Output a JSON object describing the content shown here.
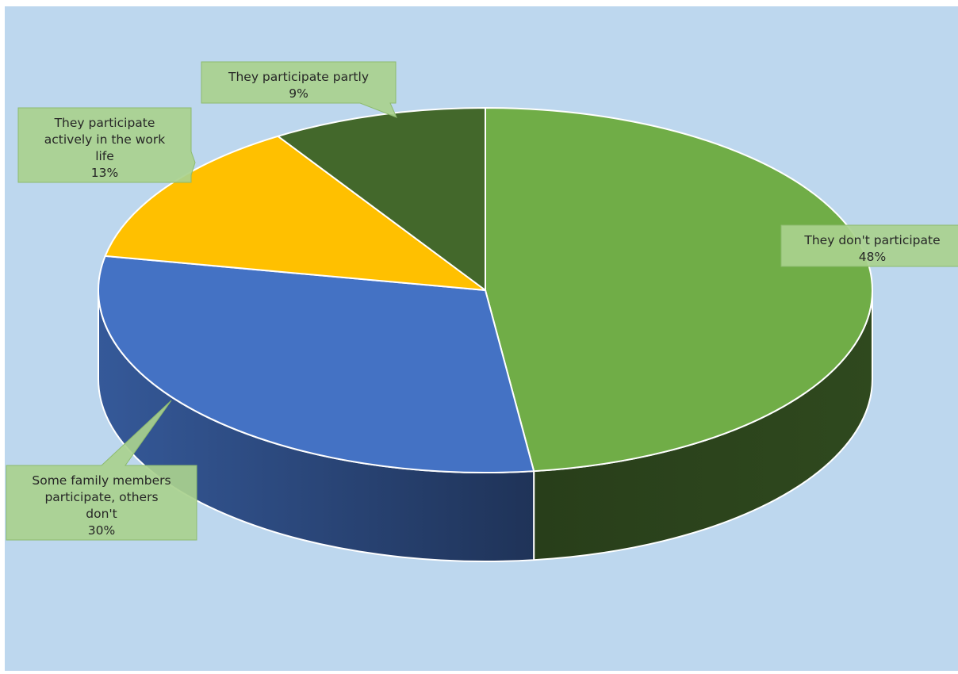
{
  "chart_data": {
    "type": "pie",
    "style": "3d",
    "categories": [
      "They don't participate",
      "Some family members participate, others don't",
      "They participate actively in the work life",
      "They participate partly"
    ],
    "values": [
      48,
      30,
      13,
      9
    ],
    "data_labels": [
      {
        "category": "They don't participate",
        "lines": [
          "They don't participate",
          "48%"
        ]
      },
      {
        "category": "Some family members participate, others don't",
        "lines": [
          "Some family members",
          "participate, others",
          "don't",
          "30%"
        ]
      },
      {
        "category": "They participate actively in the work life",
        "lines": [
          "They participate",
          "actively in the work",
          "life",
          "13%"
        ]
      },
      {
        "category": "They participate partly",
        "lines": [
          "They participate partly",
          "9%"
        ]
      }
    ],
    "colors": [
      "#70ad47",
      "#4472c4",
      "#ffc000",
      "#43682b"
    ],
    "callout_fill": "#a9d18e",
    "background": "#bdd7ee",
    "legend": "none",
    "title": ""
  }
}
